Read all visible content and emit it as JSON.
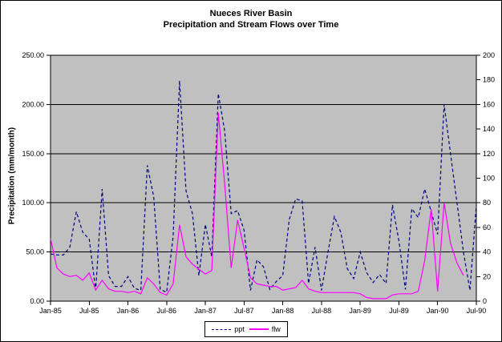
{
  "title": {
    "line1": "Nueces River Basin",
    "line2": "Precipitation and Stream Flows over Time"
  },
  "colors": {
    "ppt_line": "#000080",
    "flw_line": "#FF00FF",
    "plot_background": "#C0C0C0",
    "grid_line": "#000000",
    "text": "#000000"
  },
  "chart_data": {
    "type": "line",
    "title": "Nueces River Basin",
    "subtitle": "Precipitation and Stream Flows over Time",
    "x": [
      "Jan-85",
      "Feb-85",
      "Mar-85",
      "Apr-85",
      "May-85",
      "Jun-85",
      "Jul-85",
      "Aug-85",
      "Sep-85",
      "Oct-85",
      "Nov-85",
      "Dec-85",
      "Jan-86",
      "Feb-86",
      "Mar-86",
      "Apr-86",
      "May-86",
      "Jun-86",
      "Jul-86",
      "Aug-86",
      "Sep-86",
      "Oct-86",
      "Nov-86",
      "Dec-86",
      "Jan-87",
      "Feb-87",
      "Mar-87",
      "Apr-87",
      "May-87",
      "Jun-87",
      "Jul-87",
      "Aug-87",
      "Sep-87",
      "Oct-87",
      "Nov-87",
      "Dec-87",
      "Jan-88",
      "Feb-88",
      "Mar-88",
      "Apr-88",
      "May-88",
      "Jun-88",
      "Jul-88",
      "Aug-88",
      "Sep-88",
      "Oct-88",
      "Nov-88",
      "Dec-88",
      "Jan-89",
      "Feb-89",
      "Mar-89",
      "Apr-89",
      "May-89",
      "Jun-89",
      "Jul-89",
      "Aug-89",
      "Sep-89",
      "Oct-89",
      "Nov-89",
      "Dec-89",
      "Jan-90",
      "Feb-90",
      "Mar-90",
      "Apr-90",
      "May-90",
      "Jun-90",
      "Jul-90"
    ],
    "x_tick_labels": [
      "Jan-85",
      "Jul-85",
      "Jan-86",
      "Jul-86",
      "Jan-87",
      "Jul-87",
      "Jan-88",
      "Jul-88",
      "Jan-89",
      "Jul-89",
      "Jan-90",
      "Jul-90"
    ],
    "series": [
      {
        "name": "ppt",
        "axis": "left",
        "color": "#000080",
        "line_style": "dashed",
        "values": [
          48,
          47,
          47,
          55,
          91,
          70,
          63,
          11,
          114,
          26,
          15,
          15,
          25,
          13,
          11,
          138,
          106,
          12,
          9,
          66,
          224,
          112,
          89,
          26,
          78,
          45,
          211,
          173,
          89,
          92,
          72,
          11,
          42,
          35,
          12,
          20,
          26,
          83,
          104,
          102,
          18,
          55,
          11,
          50,
          86,
          70,
          33,
          23,
          50,
          29,
          19,
          27,
          18,
          98,
          61,
          12,
          94,
          85,
          114,
          91,
          68,
          200,
          150,
          100,
          50,
          11,
          98
        ]
      },
      {
        "name": "flw",
        "axis": "right",
        "color": "#FF00FF",
        "line_style": "solid",
        "values": [
          51,
          27,
          22,
          20,
          21,
          17,
          23,
          9,
          17,
          10,
          8,
          8,
          7,
          8,
          6,
          19,
          14,
          7,
          5,
          14,
          62,
          36,
          30,
          26,
          22,
          25,
          153,
          95,
          27,
          66,
          43,
          19,
          14,
          13,
          12,
          12,
          9,
          10,
          11,
          17,
          10,
          8,
          7,
          7,
          7,
          7,
          7,
          7,
          6,
          3,
          2,
          2,
          2,
          5,
          6,
          6,
          6,
          8,
          33,
          75,
          8,
          80,
          47,
          31,
          21,
          null,
          null
        ]
      }
    ],
    "axes": {
      "left": {
        "label": "Precipitation (mm/month)",
        "min": 0,
        "max": 250,
        "tick_step": 50,
        "tick_labels": [
          "0.00",
          "50.00",
          "100.00",
          "150.00",
          "200.00",
          "250.00"
        ]
      },
      "right": {
        "label": "",
        "min": 0,
        "max": 200,
        "tick_step": 20,
        "tick_labels": [
          "0",
          "20",
          "40",
          "60",
          "80",
          "100",
          "120",
          "140",
          "160",
          "180",
          "200"
        ]
      }
    },
    "grid": {
      "horizontal_lines_left_units": [
        50,
        100,
        150,
        200
      ],
      "vertical": false
    },
    "plot_background": "#C0C0C0",
    "legend_position": "bottom-center"
  },
  "legend": {
    "ppt_label": "ppt",
    "flw_label": "flw"
  }
}
